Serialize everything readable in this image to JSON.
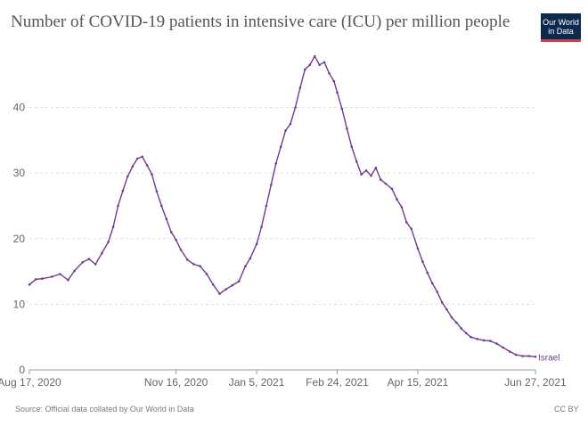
{
  "title": "Number of COVID-19 patients in intensive care (ICU) per million people",
  "logo": {
    "line1": "Our World",
    "line2": "in Data"
  },
  "source": "Source: Official data collated by Our World in Data",
  "license": "CC BY",
  "colors": {
    "series": "#6d3e91",
    "grid": "#dddddd",
    "axis": "#999999",
    "text": "#666666"
  },
  "chart_data": {
    "type": "line",
    "x_axis": {
      "type": "date",
      "range": [
        "2020-08-17",
        "2021-06-27"
      ],
      "ticks": [
        "2020-08-17",
        "2020-11-16",
        "2021-01-05",
        "2021-02-24",
        "2021-04-15",
        "2021-06-27"
      ],
      "tick_labels": [
        "Aug 17, 2020",
        "Nov 16, 2020",
        "Jan 5, 2021",
        "Feb 24, 2021",
        "Apr 15, 2021",
        "Jun 27, 2021"
      ]
    },
    "y_axis": {
      "range": [
        0,
        50
      ],
      "ticks": [
        0,
        10,
        20,
        30,
        40
      ]
    },
    "grid": "horizontal dashed",
    "series": [
      {
        "name": "Israel",
        "points": [
          [
            "2020-08-17",
            13.0
          ],
          [
            "2020-08-21",
            13.8
          ],
          [
            "2020-08-25",
            13.9
          ],
          [
            "2020-08-31",
            14.2
          ],
          [
            "2020-09-05",
            14.6
          ],
          [
            "2020-09-10",
            13.7
          ],
          [
            "2020-09-14",
            15.1
          ],
          [
            "2020-09-19",
            16.4
          ],
          [
            "2020-09-23",
            16.9
          ],
          [
            "2020-09-27",
            16.1
          ],
          [
            "2020-10-01",
            17.8
          ],
          [
            "2020-10-05",
            19.5
          ],
          [
            "2020-10-08",
            21.8
          ],
          [
            "2020-10-11",
            25.0
          ],
          [
            "2020-10-14",
            27.3
          ],
          [
            "2020-10-17",
            29.5
          ],
          [
            "2020-10-20",
            31.0
          ],
          [
            "2020-10-23",
            32.2
          ],
          [
            "2020-10-26",
            32.5
          ],
          [
            "2020-10-29",
            31.2
          ],
          [
            "2020-11-01",
            29.8
          ],
          [
            "2020-11-04",
            27.2
          ],
          [
            "2020-11-07",
            25.0
          ],
          [
            "2020-11-10",
            23.0
          ],
          [
            "2020-11-13",
            21.0
          ],
          [
            "2020-11-16",
            19.8
          ],
          [
            "2020-11-19",
            18.3
          ],
          [
            "2020-11-23",
            16.8
          ],
          [
            "2020-11-27",
            16.1
          ],
          [
            "2020-12-01",
            15.8
          ],
          [
            "2020-12-05",
            14.6
          ],
          [
            "2020-12-09",
            13.0
          ],
          [
            "2020-12-13",
            11.6
          ],
          [
            "2020-12-17",
            12.3
          ],
          [
            "2020-12-21",
            12.9
          ],
          [
            "2020-12-25",
            13.5
          ],
          [
            "2020-12-29",
            15.8
          ],
          [
            "2021-01-01",
            17.0
          ],
          [
            "2021-01-05",
            19.2
          ],
          [
            "2021-01-08",
            21.8
          ],
          [
            "2021-01-11",
            25.0
          ],
          [
            "2021-01-14",
            28.2
          ],
          [
            "2021-01-17",
            31.5
          ],
          [
            "2021-01-20",
            34.0
          ],
          [
            "2021-01-23",
            36.5
          ],
          [
            "2021-01-26",
            37.5
          ],
          [
            "2021-01-29",
            40.0
          ],
          [
            "2021-02-01",
            43.0
          ],
          [
            "2021-02-04",
            45.8
          ],
          [
            "2021-02-07",
            46.5
          ],
          [
            "2021-02-10",
            47.8
          ],
          [
            "2021-02-13",
            46.5
          ],
          [
            "2021-02-16",
            46.9
          ],
          [
            "2021-02-19",
            45.2
          ],
          [
            "2021-02-22",
            44.0
          ],
          [
            "2021-02-24",
            42.3
          ],
          [
            "2021-02-27",
            39.8
          ],
          [
            "2021-03-02",
            36.8
          ],
          [
            "2021-03-05",
            34.0
          ],
          [
            "2021-03-08",
            31.8
          ],
          [
            "2021-03-11",
            29.8
          ],
          [
            "2021-03-14",
            30.4
          ],
          [
            "2021-03-17",
            29.6
          ],
          [
            "2021-03-20",
            30.8
          ],
          [
            "2021-03-23",
            29.0
          ],
          [
            "2021-03-26",
            28.4
          ],
          [
            "2021-03-30",
            27.6
          ],
          [
            "2021-04-02",
            26.0
          ],
          [
            "2021-04-05",
            24.8
          ],
          [
            "2021-04-08",
            22.5
          ],
          [
            "2021-04-11",
            21.5
          ],
          [
            "2021-04-15",
            18.5
          ],
          [
            "2021-04-18",
            16.5
          ],
          [
            "2021-04-21",
            14.8
          ],
          [
            "2021-04-24",
            13.2
          ],
          [
            "2021-04-27",
            11.9
          ],
          [
            "2021-04-30",
            10.3
          ],
          [
            "2021-05-03",
            9.2
          ],
          [
            "2021-05-06",
            8.0
          ],
          [
            "2021-05-09",
            7.2
          ],
          [
            "2021-05-12",
            6.3
          ],
          [
            "2021-05-15",
            5.6
          ],
          [
            "2021-05-18",
            5.0
          ],
          [
            "2021-05-22",
            4.7
          ],
          [
            "2021-05-26",
            4.5
          ],
          [
            "2021-05-30",
            4.4
          ],
          [
            "2021-06-03",
            4.0
          ],
          [
            "2021-06-07",
            3.4
          ],
          [
            "2021-06-11",
            2.8
          ],
          [
            "2021-06-15",
            2.3
          ],
          [
            "2021-06-19",
            2.1
          ],
          [
            "2021-06-23",
            2.1
          ],
          [
            "2021-06-27",
            2.0
          ]
        ]
      }
    ]
  }
}
